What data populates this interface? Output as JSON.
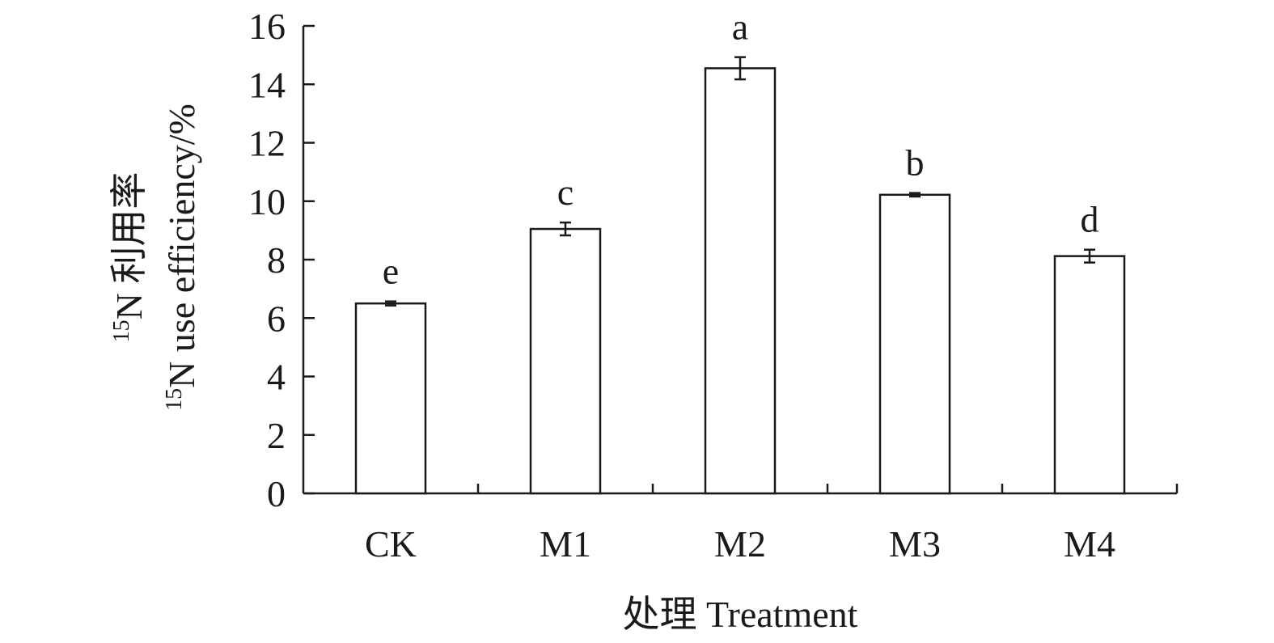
{
  "chart_data": {
    "type": "bar",
    "categories": [
      "CK",
      "M1",
      "M2",
      "M3",
      "M4"
    ],
    "values": [
      6.5,
      9.05,
      14.55,
      10.22,
      8.12
    ],
    "errors": [
      0.07,
      0.22,
      0.38,
      0.06,
      0.22
    ],
    "significance": [
      "e",
      "c",
      "a",
      "b",
      "d"
    ],
    "ylim": [
      0,
      16
    ],
    "yticks": [
      0,
      2,
      4,
      6,
      8,
      10,
      12,
      14,
      16
    ],
    "ylabel": {
      "line1_sup": "15",
      "line1_rest": "N 利用率",
      "line2_sup": "15",
      "line2_rest": "N use efficiency/%"
    },
    "xlabel": "处理 Treatment",
    "bar_fill": "#ffffff",
    "stroke_color": "#1a1a1a",
    "grid": false,
    "legend": "none"
  }
}
